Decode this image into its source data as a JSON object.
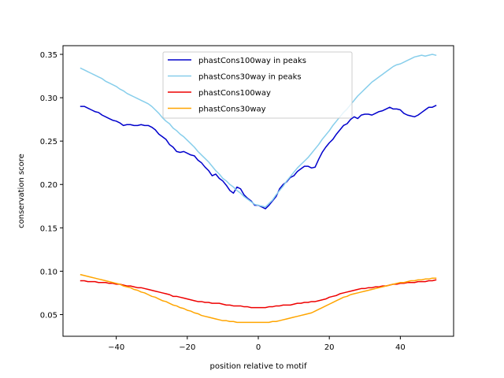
{
  "chart_data": {
    "type": "line",
    "title": "",
    "xlabel": "position relative to motif",
    "ylabel": "conservation score",
    "xlim": [
      -55,
      55
    ],
    "ylim": [
      0.025,
      0.36
    ],
    "xticks": [
      -40,
      -20,
      0,
      20,
      40
    ],
    "xtick_labels": [
      "−40",
      "−20",
      "0",
      "20",
      "40"
    ],
    "yticks": [
      0.05,
      0.1,
      0.15,
      0.2,
      0.25,
      0.3,
      0.35
    ],
    "ytick_labels": [
      "0.05",
      "0.10",
      "0.15",
      "0.20",
      "0.25",
      "0.30",
      "0.35"
    ],
    "grid": false,
    "legend_position": "top-center",
    "x": [
      -50,
      -49,
      -48,
      -47,
      -46,
      -45,
      -44,
      -43,
      -42,
      -41,
      -40,
      -39,
      -38,
      -37,
      -36,
      -35,
      -34,
      -33,
      -32,
      -31,
      -30,
      -29,
      -28,
      -27,
      -26,
      -25,
      -24,
      -23,
      -22,
      -21,
      -20,
      -19,
      -18,
      -17,
      -16,
      -15,
      -14,
      -13,
      -12,
      -11,
      -10,
      -9,
      -8,
      -7,
      -6,
      -5,
      -4,
      -3,
      -2,
      -1,
      0,
      1,
      2,
      3,
      4,
      5,
      6,
      7,
      8,
      9,
      10,
      11,
      12,
      13,
      14,
      15,
      16,
      17,
      18,
      19,
      20,
      21,
      22,
      23,
      24,
      25,
      26,
      27,
      28,
      29,
      30,
      31,
      32,
      33,
      34,
      35,
      36,
      37,
      38,
      39,
      40,
      41,
      42,
      43,
      44,
      45,
      46,
      47,
      48,
      49,
      50
    ],
    "series": [
      {
        "name": "phastCons100way in peaks",
        "color": "#0000cc",
        "values": [
          0.29,
          0.29,
          0.288,
          0.286,
          0.284,
          0.283,
          0.28,
          0.278,
          0.276,
          0.274,
          0.273,
          0.271,
          0.268,
          0.269,
          0.269,
          0.268,
          0.268,
          0.269,
          0.268,
          0.268,
          0.266,
          0.263,
          0.258,
          0.255,
          0.252,
          0.246,
          0.243,
          0.238,
          0.237,
          0.238,
          0.236,
          0.234,
          0.233,
          0.228,
          0.225,
          0.22,
          0.216,
          0.21,
          0.212,
          0.207,
          0.204,
          0.199,
          0.193,
          0.19,
          0.197,
          0.195,
          0.188,
          0.184,
          0.181,
          0.176,
          0.176,
          0.174,
          0.172,
          0.176,
          0.181,
          0.186,
          0.195,
          0.2,
          0.203,
          0.208,
          0.21,
          0.215,
          0.218,
          0.221,
          0.221,
          0.219,
          0.22,
          0.229,
          0.237,
          0.243,
          0.248,
          0.252,
          0.258,
          0.263,
          0.268,
          0.27,
          0.275,
          0.278,
          0.276,
          0.28,
          0.281,
          0.281,
          0.28,
          0.282,
          0.284,
          0.285,
          0.287,
          0.289,
          0.287,
          0.287,
          0.286,
          0.282,
          0.28,
          0.279,
          0.278,
          0.28,
          0.283,
          0.286,
          0.289,
          0.289,
          0.291
        ]
      },
      {
        "name": "phastCons30way in peaks",
        "color": "#87ceeb",
        "values": [
          0.334,
          0.332,
          0.33,
          0.328,
          0.326,
          0.324,
          0.322,
          0.319,
          0.317,
          0.315,
          0.313,
          0.31,
          0.308,
          0.305,
          0.303,
          0.301,
          0.299,
          0.297,
          0.295,
          0.293,
          0.29,
          0.286,
          0.282,
          0.277,
          0.273,
          0.27,
          0.265,
          0.262,
          0.258,
          0.255,
          0.251,
          0.247,
          0.243,
          0.238,
          0.234,
          0.23,
          0.226,
          0.221,
          0.216,
          0.212,
          0.207,
          0.204,
          0.2,
          0.197,
          0.193,
          0.19,
          0.186,
          0.183,
          0.18,
          0.177,
          0.176,
          0.175,
          0.174,
          0.178,
          0.182,
          0.188,
          0.193,
          0.198,
          0.204,
          0.209,
          0.214,
          0.219,
          0.223,
          0.227,
          0.231,
          0.236,
          0.241,
          0.246,
          0.252,
          0.257,
          0.262,
          0.268,
          0.273,
          0.278,
          0.283,
          0.287,
          0.292,
          0.297,
          0.302,
          0.306,
          0.31,
          0.314,
          0.318,
          0.321,
          0.324,
          0.327,
          0.33,
          0.333,
          0.336,
          0.338,
          0.339,
          0.341,
          0.343,
          0.345,
          0.347,
          0.348,
          0.349,
          0.348,
          0.349,
          0.35,
          0.349
        ]
      },
      {
        "name": "phastCons100way",
        "color": "#ee0000",
        "values": [
          0.089,
          0.089,
          0.088,
          0.088,
          0.088,
          0.087,
          0.087,
          0.087,
          0.086,
          0.086,
          0.085,
          0.085,
          0.084,
          0.083,
          0.083,
          0.082,
          0.081,
          0.081,
          0.08,
          0.079,
          0.078,
          0.077,
          0.076,
          0.075,
          0.074,
          0.073,
          0.071,
          0.071,
          0.07,
          0.069,
          0.068,
          0.067,
          0.066,
          0.065,
          0.065,
          0.064,
          0.064,
          0.063,
          0.063,
          0.063,
          0.062,
          0.061,
          0.061,
          0.06,
          0.06,
          0.06,
          0.059,
          0.059,
          0.058,
          0.058,
          0.058,
          0.058,
          0.058,
          0.059,
          0.059,
          0.06,
          0.06,
          0.061,
          0.061,
          0.061,
          0.062,
          0.063,
          0.063,
          0.064,
          0.064,
          0.065,
          0.065,
          0.066,
          0.067,
          0.068,
          0.07,
          0.071,
          0.072,
          0.074,
          0.075,
          0.076,
          0.077,
          0.078,
          0.079,
          0.08,
          0.08,
          0.081,
          0.081,
          0.082,
          0.082,
          0.083,
          0.083,
          0.084,
          0.085,
          0.085,
          0.086,
          0.086,
          0.087,
          0.087,
          0.087,
          0.088,
          0.088,
          0.088,
          0.089,
          0.089,
          0.09
        ]
      },
      {
        "name": "phastCons30way",
        "color": "#ffa500",
        "values": [
          0.096,
          0.095,
          0.094,
          0.093,
          0.092,
          0.091,
          0.09,
          0.089,
          0.088,
          0.087,
          0.086,
          0.085,
          0.083,
          0.082,
          0.081,
          0.079,
          0.078,
          0.076,
          0.075,
          0.073,
          0.071,
          0.07,
          0.068,
          0.066,
          0.065,
          0.063,
          0.061,
          0.06,
          0.058,
          0.057,
          0.055,
          0.054,
          0.052,
          0.051,
          0.049,
          0.048,
          0.047,
          0.046,
          0.045,
          0.044,
          0.043,
          0.043,
          0.042,
          0.042,
          0.041,
          0.041,
          0.041,
          0.041,
          0.041,
          0.041,
          0.041,
          0.041,
          0.041,
          0.041,
          0.042,
          0.042,
          0.043,
          0.044,
          0.045,
          0.046,
          0.047,
          0.048,
          0.049,
          0.05,
          0.051,
          0.052,
          0.054,
          0.056,
          0.058,
          0.06,
          0.062,
          0.064,
          0.066,
          0.068,
          0.07,
          0.071,
          0.073,
          0.074,
          0.075,
          0.076,
          0.077,
          0.078,
          0.079,
          0.08,
          0.081,
          0.082,
          0.083,
          0.084,
          0.085,
          0.086,
          0.087,
          0.087,
          0.088,
          0.089,
          0.089,
          0.09,
          0.09,
          0.091,
          0.091,
          0.092,
          0.092
        ]
      }
    ]
  }
}
